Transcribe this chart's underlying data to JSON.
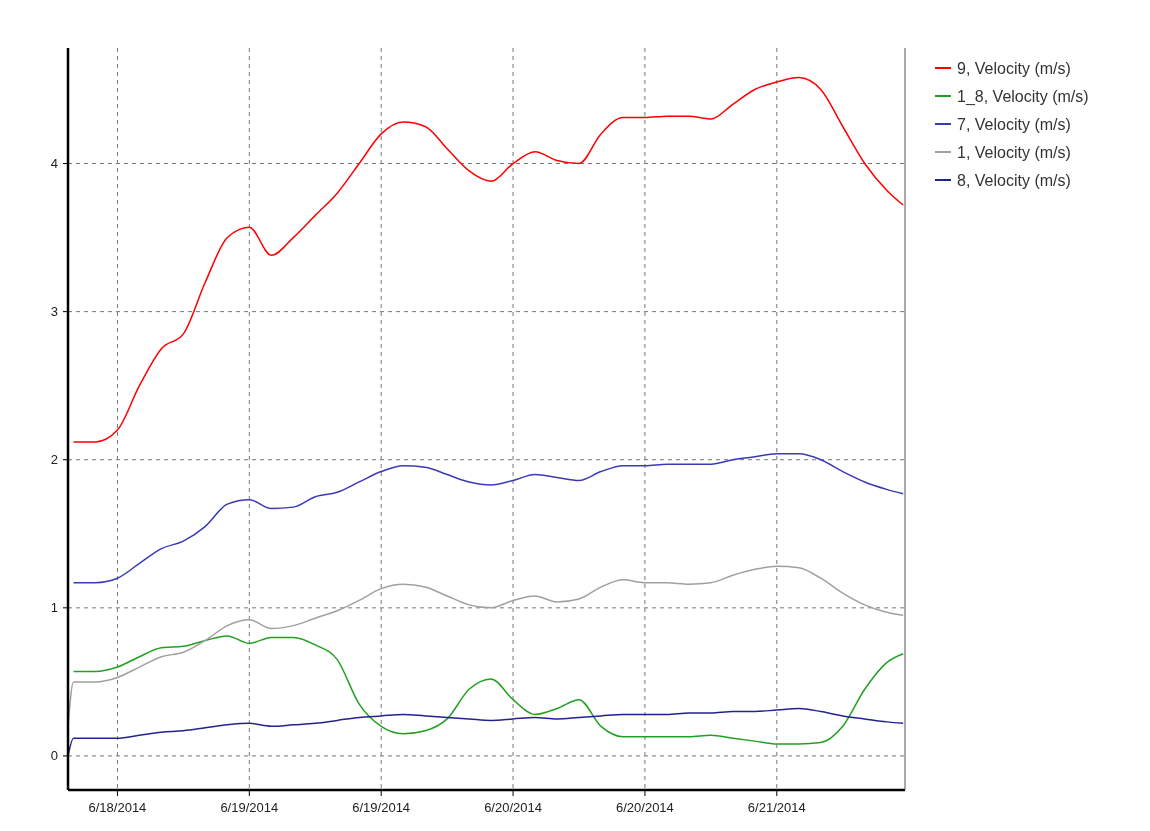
{
  "chart_data": {
    "type": "line",
    "x": [
      "2014-06-18T07:30",
      "2014-06-18T08:00",
      "2014-06-18T10:00",
      "2014-06-18T12:00",
      "2014-06-18T14:00",
      "2014-06-18T16:00",
      "2014-06-18T18:00",
      "2014-06-18T20:00",
      "2014-06-18T22:00",
      "2014-06-19T00:00",
      "2014-06-19T02:00",
      "2014-06-19T04:00",
      "2014-06-19T06:00",
      "2014-06-19T08:00",
      "2014-06-19T10:00",
      "2014-06-19T12:00",
      "2014-06-19T14:00",
      "2014-06-19T16:00",
      "2014-06-19T18:00",
      "2014-06-19T20:00",
      "2014-06-19T22:00",
      "2014-06-20T00:00",
      "2014-06-20T02:00",
      "2014-06-20T04:00",
      "2014-06-20T06:00",
      "2014-06-20T08:00",
      "2014-06-20T10:00",
      "2014-06-20T12:00",
      "2014-06-20T14:00",
      "2014-06-20T16:00",
      "2014-06-20T18:00",
      "2014-06-20T20:00",
      "2014-06-20T22:00",
      "2014-06-21T00:00",
      "2014-06-21T02:00",
      "2014-06-21T04:00",
      "2014-06-21T06:00",
      "2014-06-21T08:00",
      "2014-06-21T10:00",
      "2014-06-21T11:30"
    ],
    "series": [
      {
        "name": "9, Velocity (m/s)",
        "color": "#ff0000",
        "values": [
          null,
          2.12,
          2.12,
          2.2,
          2.5,
          2.75,
          2.85,
          3.2,
          3.5,
          3.57,
          3.38,
          3.5,
          3.65,
          3.8,
          4.0,
          4.2,
          4.28,
          4.25,
          4.1,
          3.95,
          3.88,
          4.0,
          4.08,
          4.02,
          4.0,
          4.2,
          4.31,
          4.31,
          4.32,
          4.32,
          4.3,
          4.4,
          4.5,
          4.55,
          4.58,
          4.5,
          4.25,
          4.0,
          3.82,
          3.72
        ]
      },
      {
        "name": "1_8, Velocity (m/s)",
        "color": "#22a022",
        "values": [
          null,
          0.57,
          0.57,
          0.6,
          0.67,
          0.73,
          0.74,
          0.78,
          0.81,
          0.76,
          0.8,
          0.8,
          0.75,
          0.65,
          0.35,
          0.2,
          0.15,
          0.17,
          0.25,
          0.45,
          0.52,
          0.38,
          0.28,
          0.32,
          0.38,
          0.2,
          0.13,
          0.13,
          0.13,
          0.13,
          0.14,
          0.12,
          0.1,
          0.08,
          0.08,
          0.09,
          0.2,
          0.45,
          0.63,
          0.69
        ]
      },
      {
        "name": "7, Velocity (m/s)",
        "color": "#3a3ab8",
        "values": [
          null,
          1.17,
          1.17,
          1.2,
          1.3,
          1.4,
          1.45,
          1.55,
          1.7,
          1.73,
          1.67,
          1.68,
          1.75,
          1.78,
          1.85,
          1.92,
          1.96,
          1.95,
          1.9,
          1.85,
          1.83,
          1.86,
          1.9,
          1.88,
          1.86,
          1.92,
          1.96,
          1.96,
          1.97,
          1.97,
          1.97,
          2.0,
          2.02,
          2.04,
          2.04,
          2.0,
          1.92,
          1.85,
          1.8,
          1.77
        ]
      },
      {
        "name": "1, Velocity (m/s)",
        "color": "#a0a0a0",
        "values": [
          0.2,
          0.5,
          0.5,
          0.53,
          0.6,
          0.67,
          0.7,
          0.78,
          0.88,
          0.92,
          0.86,
          0.88,
          0.93,
          0.98,
          1.05,
          1.13,
          1.16,
          1.14,
          1.08,
          1.02,
          1.0,
          1.05,
          1.08,
          1.04,
          1.06,
          1.14,
          1.19,
          1.17,
          1.17,
          1.16,
          1.17,
          1.22,
          1.26,
          1.28,
          1.27,
          1.2,
          1.1,
          1.02,
          0.97,
          0.95
        ]
      },
      {
        "name": "8, Velocity (m/s)",
        "color": "#23238f",
        "values": [
          0.0,
          0.12,
          0.12,
          0.12,
          0.14,
          0.16,
          0.17,
          0.19,
          0.21,
          0.22,
          0.2,
          0.21,
          0.22,
          0.24,
          0.26,
          0.27,
          0.28,
          0.27,
          0.26,
          0.25,
          0.24,
          0.25,
          0.26,
          0.25,
          0.26,
          0.27,
          0.28,
          0.28,
          0.28,
          0.29,
          0.29,
          0.3,
          0.3,
          0.31,
          0.32,
          0.3,
          0.27,
          0.25,
          0.23,
          0.22
        ]
      }
    ],
    "xlim": [
      "2014-06-18T07:30",
      "2014-06-21T11:40"
    ],
    "xticks": [
      {
        "value": "2014-06-18T12:00",
        "label": "6/18/2014"
      },
      {
        "value": "2014-06-19T00:00",
        "label": "6/19/2014"
      },
      {
        "value": "2014-06-19T12:00",
        "label": "6/19/2014"
      },
      {
        "value": "2014-06-20T00:00",
        "label": "6/20/2014"
      },
      {
        "value": "2014-06-20T12:00",
        "label": "6/20/2014"
      },
      {
        "value": "2014-06-21T00:00",
        "label": "6/21/2014"
      }
    ],
    "ylim": [
      -0.23,
      4.78
    ],
    "yticks": [
      0,
      1,
      2,
      3,
      4
    ],
    "grid": true,
    "legend": "top right"
  }
}
